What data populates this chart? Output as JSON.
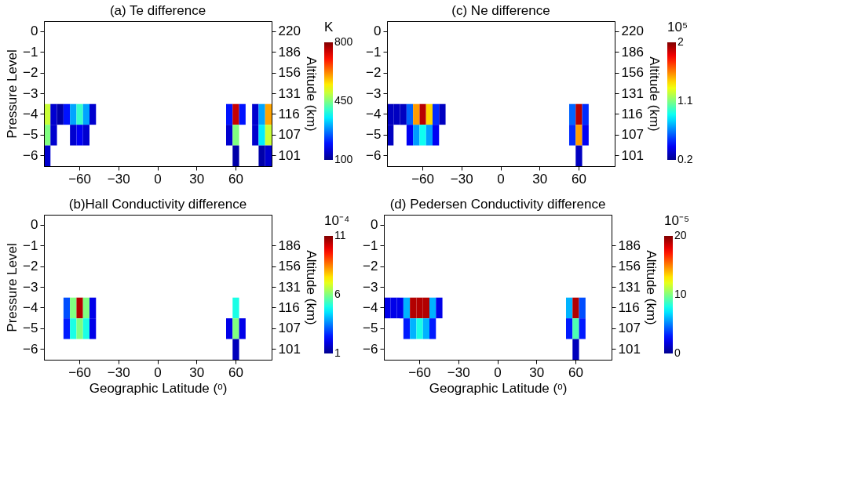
{
  "chart_data": [
    {
      "type": "heatmap",
      "title": "(a) Te difference",
      "ylabel": "Pressure Level",
      "y2label": "Altitude (km)",
      "clabel": "K",
      "clim": [
        100,
        800
      ],
      "cticks": [
        100,
        450,
        800
      ],
      "categories": [
        null,
        null,
        null,
        null,
        null,
        "−60",
        null,
        null,
        null,
        null,
        null,
        "−30",
        null,
        null,
        null,
        null,
        null,
        "0",
        null,
        null,
        null,
        null,
        null,
        "30",
        null,
        null,
        null,
        null,
        null,
        "60",
        null,
        null,
        null,
        null,
        null
      ],
      "y_categories": [
        "0",
        "−1",
        "−2",
        "−3",
        "−4",
        "−5",
        "−6"
      ],
      "y2_categories": [
        "220",
        "186",
        "156",
        "131",
        "116",
        "107",
        "101"
      ],
      "cells": [
        [
          null,
          null,
          null,
          null,
          null,
          null,
          null,
          null,
          null,
          null,
          null,
          null,
          null,
          null,
          null,
          null,
          null,
          null,
          null,
          null,
          null,
          null,
          null,
          null,
          null,
          null,
          null,
          null,
          null,
          null,
          null,
          null,
          null,
          null,
          null
        ],
        [
          null,
          null,
          null,
          null,
          null,
          null,
          null,
          null,
          null,
          null,
          null,
          null,
          null,
          null,
          null,
          null,
          null,
          null,
          null,
          null,
          null,
          null,
          null,
          null,
          null,
          null,
          null,
          null,
          null,
          null,
          null,
          null,
          null,
          null,
          null
        ],
        [
          null,
          null,
          null,
          null,
          null,
          null,
          null,
          null,
          null,
          null,
          null,
          null,
          null,
          null,
          null,
          null,
          null,
          null,
          null,
          null,
          null,
          null,
          null,
          null,
          null,
          null,
          null,
          null,
          null,
          null,
          null,
          null,
          null,
          null,
          null
        ],
        [
          null,
          null,
          null,
          null,
          null,
          null,
          null,
          null,
          null,
          null,
          null,
          null,
          null,
          null,
          null,
          null,
          null,
          null,
          null,
          null,
          null,
          null,
          null,
          null,
          null,
          null,
          null,
          null,
          null,
          null,
          null,
          null,
          null,
          null,
          null
        ],
        [
          500,
          150,
          120,
          200,
          300,
          400,
          300,
          150,
          null,
          null,
          null,
          null,
          null,
          null,
          null,
          null,
          null,
          null,
          null,
          null,
          null,
          null,
          null,
          null,
          null,
          null,
          null,
          null,
          200,
          750,
          200,
          null,
          150,
          300,
          600
        ],
        [
          450,
          150,
          null,
          null,
          150,
          180,
          150,
          null,
          null,
          null,
          null,
          null,
          null,
          null,
          null,
          null,
          null,
          null,
          null,
          null,
          null,
          null,
          null,
          null,
          null,
          null,
          null,
          null,
          150,
          450,
          null,
          null,
          150,
          350,
          500
        ],
        [
          150,
          null,
          null,
          null,
          null,
          null,
          null,
          null,
          null,
          null,
          null,
          null,
          null,
          null,
          null,
          null,
          null,
          null,
          null,
          null,
          null,
          null,
          null,
          null,
          null,
          null,
          null,
          null,
          null,
          120,
          null,
          null,
          null,
          120,
          150
        ]
      ]
    },
    {
      "type": "heatmap",
      "title": "(c) Ne difference",
      "y2label": "Altitude (km)",
      "clabel": "10⁵",
      "clim": [
        0.2,
        2
      ],
      "cticks": [
        0.2,
        1.1,
        2
      ],
      "categories": [
        null,
        null,
        null,
        null,
        null,
        "−60",
        null,
        null,
        null,
        null,
        null,
        "−30",
        null,
        null,
        null,
        null,
        null,
        "0",
        null,
        null,
        null,
        null,
        null,
        "30",
        null,
        null,
        null,
        null,
        null,
        "60",
        null,
        null,
        null,
        null,
        null
      ],
      "y_categories": [
        "0",
        "−1",
        "−2",
        "−3",
        "−4",
        "−5",
        "−6"
      ],
      "y2_categories": [
        "220",
        "186",
        "156",
        "131",
        "116",
        "107",
        "101"
      ],
      "cells": [
        [
          null,
          null,
          null,
          null,
          null,
          null,
          null,
          null,
          null,
          null,
          null,
          null,
          null,
          null,
          null,
          null,
          null,
          null,
          null,
          null,
          null,
          null,
          null,
          null,
          null,
          null,
          null,
          null,
          null,
          null,
          null,
          null,
          null,
          null,
          null
        ],
        [
          null,
          null,
          null,
          null,
          null,
          null,
          null,
          null,
          null,
          null,
          null,
          null,
          null,
          null,
          null,
          null,
          null,
          null,
          null,
          null,
          null,
          null,
          null,
          null,
          null,
          null,
          null,
          null,
          null,
          null,
          null,
          null,
          null,
          null,
          null
        ],
        [
          null,
          null,
          null,
          null,
          null,
          null,
          null,
          null,
          null,
          null,
          null,
          null,
          null,
          null,
          null,
          null,
          null,
          null,
          null,
          null,
          null,
          null,
          null,
          null,
          null,
          null,
          null,
          null,
          null,
          null,
          null,
          null,
          null,
          null,
          null
        ],
        [
          null,
          null,
          null,
          null,
          null,
          null,
          null,
          null,
          null,
          null,
          null,
          null,
          null,
          null,
          null,
          null,
          null,
          null,
          null,
          null,
          null,
          null,
          null,
          null,
          null,
          null,
          null,
          null,
          null,
          null,
          null,
          null,
          null,
          null,
          null
        ],
        [
          0.3,
          0.3,
          0.3,
          0.6,
          1.5,
          1.9,
          1.4,
          0.5,
          0.3,
          null,
          null,
          null,
          null,
          null,
          null,
          null,
          null,
          null,
          null,
          null,
          null,
          null,
          null,
          null,
          null,
          null,
          null,
          null,
          0.6,
          1.9,
          0.5,
          null,
          null,
          null,
          null
        ],
        [
          0.3,
          null,
          null,
          0.4,
          0.7,
          0.9,
          0.7,
          0.4,
          null,
          null,
          null,
          null,
          null,
          null,
          null,
          null,
          null,
          null,
          null,
          null,
          null,
          null,
          null,
          null,
          null,
          null,
          null,
          null,
          0.5,
          1.5,
          0.4,
          null,
          null,
          null,
          null
        ],
        [
          null,
          null,
          null,
          null,
          null,
          null,
          null,
          null,
          null,
          null,
          null,
          null,
          null,
          null,
          null,
          null,
          null,
          null,
          null,
          null,
          null,
          null,
          null,
          null,
          null,
          null,
          null,
          null,
          null,
          0.3,
          null,
          null,
          null,
          null,
          null
        ]
      ]
    },
    {
      "type": "heatmap",
      "title": "(b)Hall Conductivity difference",
      "xlabel": "Geographic Latitude (ᵒ)",
      "ylabel": "Pressure Level",
      "y2label": "Altitude (km)",
      "clabel": "10⁻⁴",
      "clim": [
        1,
        11
      ],
      "cticks": [
        1,
        6,
        11
      ],
      "categories": [
        null,
        null,
        null,
        null,
        null,
        "−60",
        null,
        null,
        null,
        null,
        null,
        "−30",
        null,
        null,
        null,
        null,
        null,
        "0",
        null,
        null,
        null,
        null,
        null,
        "30",
        null,
        null,
        null,
        null,
        null,
        "60",
        null,
        null,
        null,
        null,
        null
      ],
      "y_categories": [
        "0",
        "−1",
        "−2",
        "−3",
        "−4",
        "−5",
        "−6"
      ],
      "y2_categories": [
        null,
        "186",
        "156",
        "131",
        "116",
        "107",
        "101"
      ],
      "cells": [
        [
          null,
          null,
          null,
          null,
          null,
          null,
          null,
          null,
          null,
          null,
          null,
          null,
          null,
          null,
          null,
          null,
          null,
          null,
          null,
          null,
          null,
          null,
          null,
          null,
          null,
          null,
          null,
          null,
          null,
          null,
          null,
          null,
          null,
          null,
          null
        ],
        [
          null,
          null,
          null,
          null,
          null,
          null,
          null,
          null,
          null,
          null,
          null,
          null,
          null,
          null,
          null,
          null,
          null,
          null,
          null,
          null,
          null,
          null,
          null,
          null,
          null,
          null,
          null,
          null,
          null,
          null,
          null,
          null,
          null,
          null,
          null
        ],
        [
          null,
          null,
          null,
          null,
          null,
          null,
          null,
          null,
          null,
          null,
          null,
          null,
          null,
          null,
          null,
          null,
          null,
          null,
          null,
          null,
          null,
          null,
          null,
          null,
          null,
          null,
          null,
          null,
          null,
          null,
          null,
          null,
          null,
          null,
          null
        ],
        [
          null,
          null,
          null,
          null,
          null,
          null,
          null,
          null,
          null,
          null,
          null,
          null,
          null,
          null,
          null,
          null,
          null,
          null,
          null,
          null,
          null,
          null,
          null,
          null,
          null,
          null,
          null,
          null,
          null,
          null,
          null,
          null,
          null,
          null,
          null
        ],
        [
          null,
          null,
          null,
          3,
          6,
          10.5,
          6,
          2,
          null,
          null,
          null,
          null,
          null,
          null,
          null,
          null,
          null,
          null,
          null,
          null,
          null,
          null,
          null,
          null,
          null,
          null,
          null,
          null,
          null,
          5,
          null,
          null,
          null,
          null,
          null
        ],
        [
          null,
          null,
          null,
          2.5,
          5,
          6,
          5,
          2,
          null,
          null,
          null,
          null,
          null,
          null,
          null,
          null,
          null,
          null,
          null,
          null,
          null,
          null,
          null,
          null,
          null,
          null,
          null,
          null,
          2,
          6,
          2,
          null,
          null,
          null,
          null
        ],
        [
          null,
          null,
          null,
          null,
          null,
          null,
          null,
          null,
          null,
          null,
          null,
          null,
          null,
          null,
          null,
          null,
          null,
          null,
          null,
          null,
          null,
          null,
          null,
          null,
          null,
          null,
          null,
          null,
          null,
          1.5,
          null,
          null,
          null,
          null,
          null
        ]
      ]
    },
    {
      "type": "heatmap",
      "title": "(d) Pedersen Conductivity difference",
      "xlabel": "Geographic Latitude (ᵒ)",
      "y2label": "Altitude (km)",
      "clabel": "10⁻⁵",
      "clim": [
        0,
        20
      ],
      "cticks": [
        0,
        10,
        20
      ],
      "categories": [
        null,
        null,
        null,
        null,
        null,
        "−60",
        null,
        null,
        null,
        null,
        null,
        "−30",
        null,
        null,
        null,
        null,
        null,
        "0",
        null,
        null,
        null,
        null,
        null,
        "30",
        null,
        null,
        null,
        null,
        null,
        "60",
        null,
        null,
        null,
        null,
        null
      ],
      "y_categories": [
        "0",
        "−1",
        "−2",
        "−3",
        "−4",
        "−5",
        "−6"
      ],
      "y2_categories": [
        null,
        "186",
        "156",
        "131",
        "116",
        "107",
        "101"
      ],
      "cells": [
        [
          null,
          null,
          null,
          null,
          null,
          null,
          null,
          null,
          null,
          null,
          null,
          null,
          null,
          null,
          null,
          null,
          null,
          null,
          null,
          null,
          null,
          null,
          null,
          null,
          null,
          null,
          null,
          null,
          null,
          null,
          null,
          null,
          null,
          null,
          null
        ],
        [
          null,
          null,
          null,
          null,
          null,
          null,
          null,
          null,
          null,
          null,
          null,
          null,
          null,
          null,
          null,
          null,
          null,
          null,
          null,
          null,
          null,
          null,
          null,
          null,
          null,
          null,
          null,
          null,
          null,
          null,
          null,
          null,
          null,
          null,
          null
        ],
        [
          null,
          null,
          null,
          null,
          null,
          null,
          null,
          null,
          null,
          null,
          null,
          null,
          null,
          null,
          null,
          null,
          null,
          null,
          null,
          null,
          null,
          null,
          null,
          null,
          null,
          null,
          null,
          null,
          null,
          null,
          null,
          null,
          null,
          null,
          null
        ],
        [
          null,
          null,
          null,
          null,
          null,
          null,
          null,
          null,
          null,
          null,
          null,
          null,
          null,
          null,
          null,
          null,
          null,
          null,
          null,
          null,
          null,
          null,
          null,
          null,
          null,
          null,
          null,
          null,
          null,
          null,
          null,
          null,
          null,
          null,
          null
        ],
        [
          2,
          2,
          2,
          6,
          19,
          19,
          19,
          6,
          2,
          null,
          null,
          null,
          null,
          null,
          null,
          null,
          null,
          null,
          null,
          null,
          null,
          null,
          null,
          null,
          null,
          null,
          null,
          null,
          6,
          19,
          4,
          null,
          null,
          null,
          null
        ],
        [
          null,
          null,
          null,
          3,
          6,
          8,
          6,
          3,
          null,
          null,
          null,
          null,
          null,
          null,
          null,
          null,
          null,
          null,
          null,
          null,
          null,
          null,
          null,
          null,
          null,
          null,
          null,
          null,
          3,
          9,
          3,
          null,
          null,
          null,
          null
        ],
        [
          null,
          null,
          null,
          null,
          null,
          null,
          null,
          null,
          null,
          null,
          null,
          null,
          null,
          null,
          null,
          null,
          null,
          null,
          null,
          null,
          null,
          null,
          null,
          null,
          null,
          null,
          null,
          null,
          null,
          1,
          null,
          null,
          null,
          null,
          null
        ]
      ]
    }
  ]
}
